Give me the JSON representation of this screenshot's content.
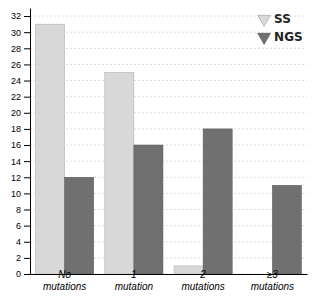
{
  "chart_data": {
    "type": "bar",
    "categories": [
      "No\nmutations",
      "1\nmutation",
      "2\nmutations",
      "≥3\nmutations"
    ],
    "series": [
      {
        "name": "SS",
        "color": "#d8d8d8",
        "values": [
          31,
          25,
          1,
          0
        ]
      },
      {
        "name": "NGS",
        "color": "#707070",
        "values": [
          12,
          16,
          18,
          11
        ]
      }
    ],
    "ylim": [
      0,
      33
    ],
    "yticks": [
      0,
      2,
      4,
      6,
      8,
      10,
      12,
      14,
      16,
      18,
      20,
      22,
      24,
      26,
      28,
      30,
      32
    ],
    "grid": true,
    "legend": "upper right"
  }
}
